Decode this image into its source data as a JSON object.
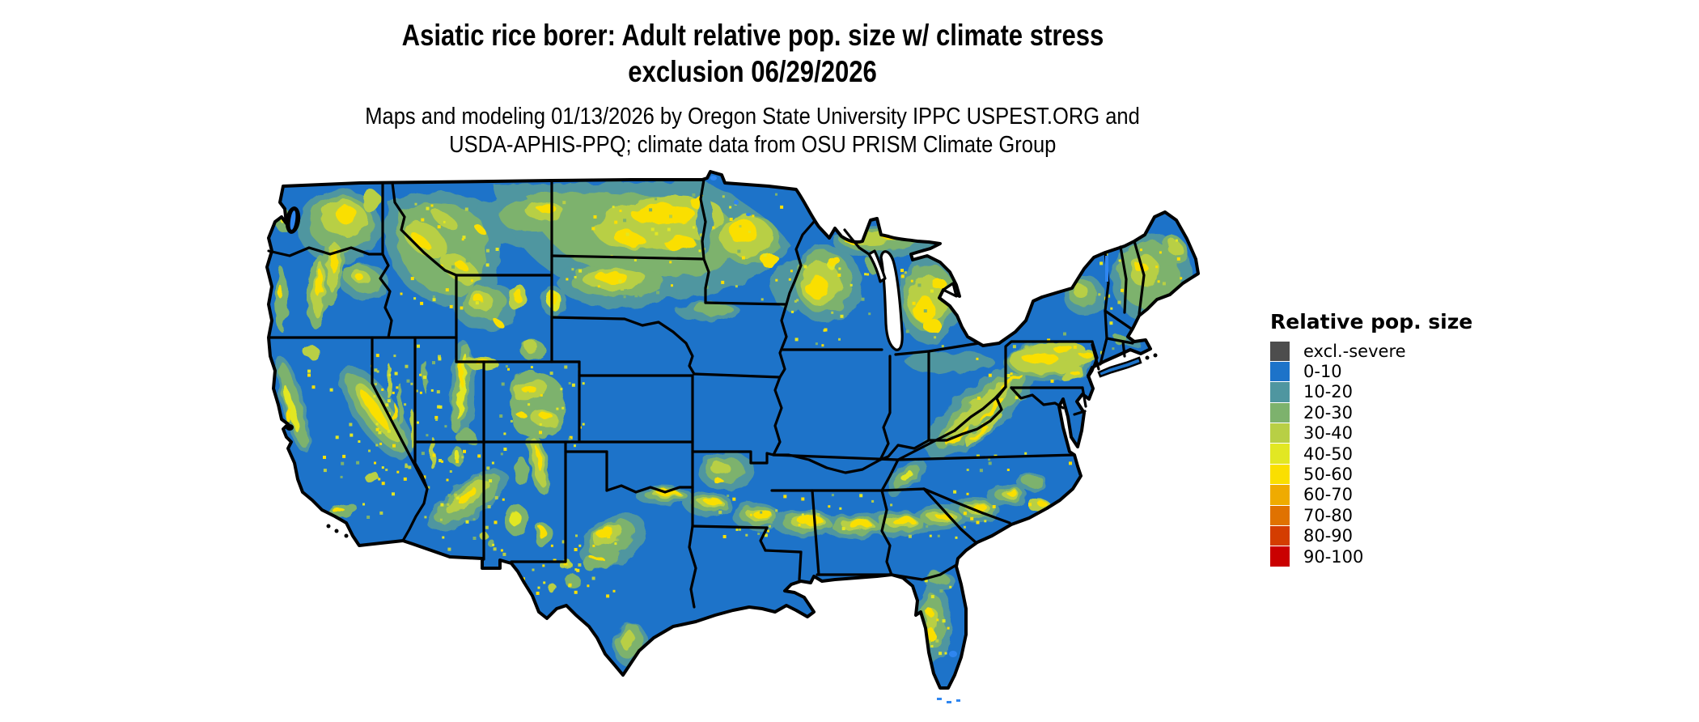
{
  "header": {
    "title_line1": "Asiatic rice borer: Adult relative pop. size w/ climate stress",
    "title_line2": "exclusion 06/29/2026",
    "subtitle_line1": "Maps and modeling 01/13/2026 by Oregon State University IPPC USPEST.ORG and",
    "subtitle_line2": "USDA-APHIS-PPQ; climate data from OSU PRISM Climate Group"
  },
  "legend": {
    "title": "Relative pop. size",
    "items": [
      {
        "label": "excl.-severe",
        "color": "#4d4d4d"
      },
      {
        "label": "0-10",
        "color": "#1d73c9"
      },
      {
        "label": "10-20",
        "color": "#4f96a0"
      },
      {
        "label": "20-30",
        "color": "#7db26d"
      },
      {
        "label": "30-40",
        "color": "#b8cf45"
      },
      {
        "label": "40-50",
        "color": "#e2e723"
      },
      {
        "label": "50-60",
        "color": "#fadf00"
      },
      {
        "label": "60-70",
        "color": "#efab00"
      },
      {
        "label": "70-80",
        "color": "#e07200"
      },
      {
        "label": "80-90",
        "color": "#d43d00"
      },
      {
        "label": "90-100",
        "color": "#ca0000"
      }
    ]
  },
  "map": {
    "region": "Continental United States",
    "base_value_class": "0-10",
    "colors": {
      "background": "#ffffff",
      "state_border": "#000000",
      "base_fill": "#1d73c9",
      "water_detail": "#2f86f0"
    }
  }
}
